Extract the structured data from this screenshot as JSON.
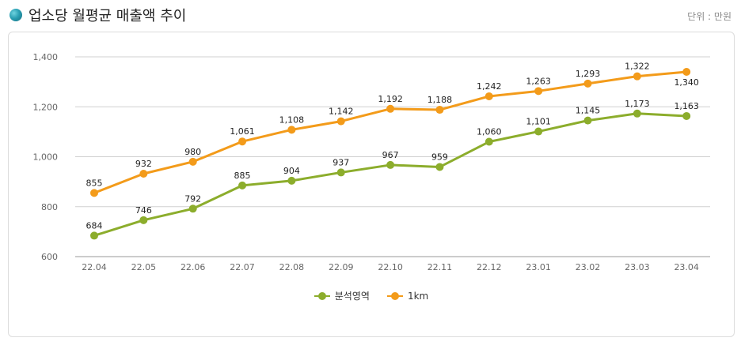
{
  "header": {
    "title": "업소당 월평균 매출액 추이",
    "unit": "단위 : 만원"
  },
  "chart_data": {
    "type": "line",
    "title": "업소당 월평균 매출액 추이",
    "xlabel": "",
    "ylabel": "",
    "categories": [
      "22.04",
      "22.05",
      "22.06",
      "22.07",
      "22.08",
      "22.09",
      "22.10",
      "22.11",
      "22.12",
      "23.01",
      "23.02",
      "23.03",
      "23.04"
    ],
    "ylim": [
      600,
      1400
    ],
    "yticks": [
      600,
      800,
      1000,
      1200,
      1400
    ],
    "ytick_labels": [
      "600",
      "800",
      "1,000",
      "1,200",
      "1,400"
    ],
    "grid": "horizontal",
    "legend_position": "bottom-center",
    "series": [
      {
        "name": "분석영역",
        "color": "#8cad2c",
        "values": [
          684,
          746,
          792,
          885,
          904,
          937,
          967,
          959,
          1060,
          1101,
          1145,
          1173,
          1163
        ],
        "labels": [
          "684",
          "746",
          "792",
          "885",
          "904",
          "937",
          "967",
          "959",
          "1,060",
          "1,101",
          "1,145",
          "1,173",
          "1,163"
        ]
      },
      {
        "name": "1km",
        "color": "#f39b1a",
        "values": [
          855,
          932,
          980,
          1061,
          1108,
          1142,
          1192,
          1188,
          1242,
          1263,
          1293,
          1322,
          1340
        ],
        "labels": [
          "855",
          "932",
          "980",
          "1,061",
          "1,108",
          "1,142",
          "1,192",
          "1,188",
          "1,242",
          "1,263",
          "1,293",
          "1,322",
          "1,340"
        ]
      }
    ]
  }
}
